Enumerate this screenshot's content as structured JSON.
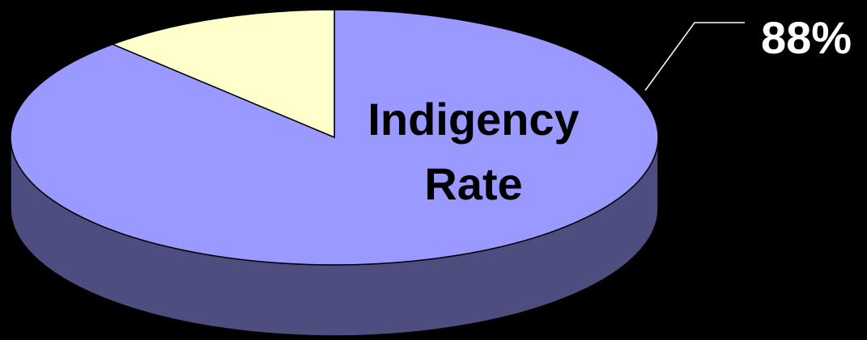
{
  "chart_data": {
    "type": "pie",
    "categories": [
      "Indigency Rate",
      null
    ],
    "values": [
      88,
      12
    ],
    "value_labels": [
      "88%",
      null
    ],
    "colors": [
      "#9999ff",
      "#ffffcc"
    ]
  }
}
